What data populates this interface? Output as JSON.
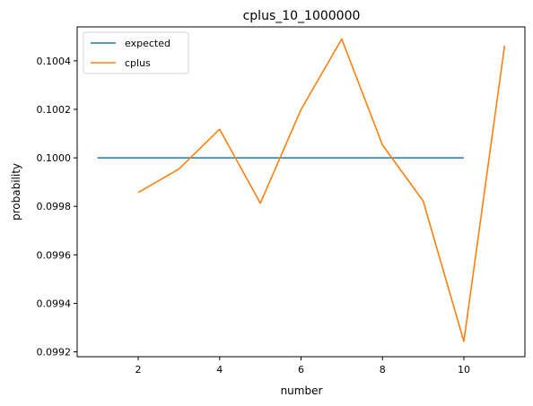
{
  "chart_data": {
    "type": "line",
    "title": "cplus_10_1000000",
    "xlabel": "number",
    "ylabel": "probability",
    "xlim": [
      0.5,
      11.5
    ],
    "ylim": [
      0.09918,
      0.10054
    ],
    "xticks": [
      2,
      4,
      6,
      8,
      10
    ],
    "xtick_labels": [
      "2",
      "4",
      "6",
      "8",
      "10"
    ],
    "yticks": [
      0.0992,
      0.0994,
      0.0996,
      0.0998,
      0.1,
      0.1002,
      0.1004
    ],
    "ytick_labels": [
      "0.0992",
      "0.0994",
      "0.0996",
      "0.0998",
      "0.1000",
      "0.1002",
      "0.1004"
    ],
    "grid": false,
    "legend_position": "upper-left",
    "series": [
      {
        "name": "expected",
        "color": "#1f77b4",
        "x": [
          1,
          10
        ],
        "values": [
          0.1,
          0.1
        ]
      },
      {
        "name": "cplus",
        "color": "#ff7f0e",
        "x": [
          2,
          3,
          4,
          5,
          6,
          7,
          8,
          9,
          10,
          11
        ],
        "values": [
          0.099857,
          0.099954,
          0.100118,
          0.099813,
          0.100199,
          0.10049,
          0.100053,
          0.099822,
          0.099243,
          0.100462
        ]
      }
    ]
  }
}
